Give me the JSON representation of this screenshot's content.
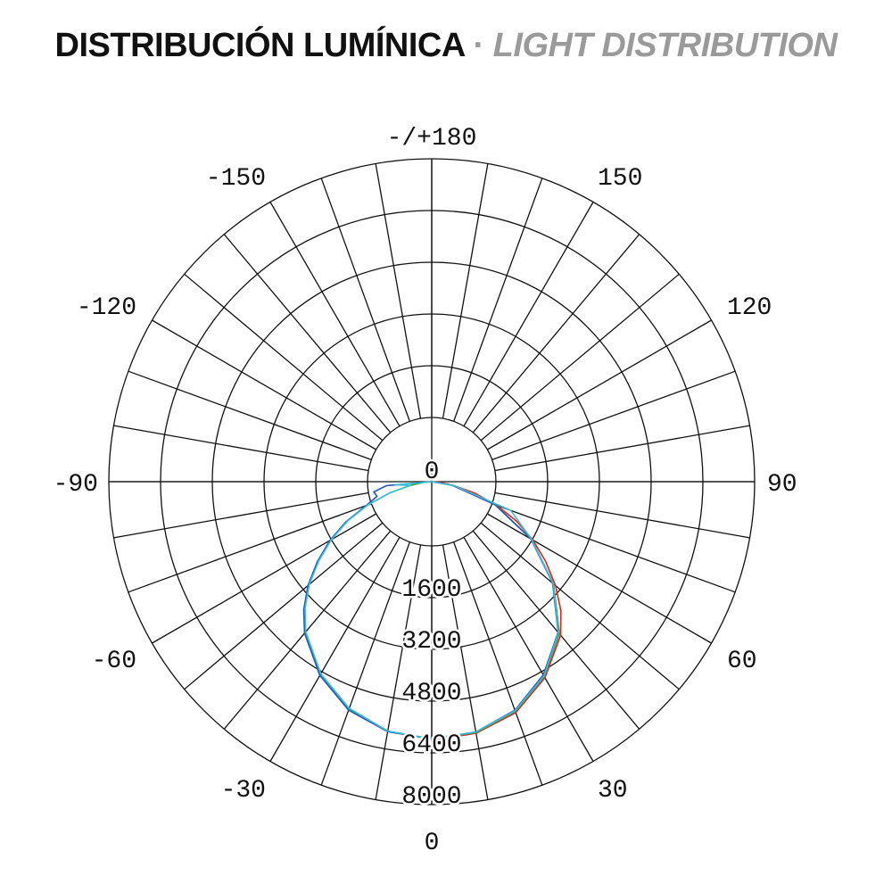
{
  "title": {
    "main": "DISTRIBUCIÓN LUMÍNICA",
    "separator": "·",
    "sub": "LIGHT DISTRIBUTION"
  },
  "chart_data": {
    "type": "polar",
    "angle_labels": [
      {
        "angle": 180,
        "text": "-/+180"
      },
      {
        "angle": -150,
        "text": "-150"
      },
      {
        "angle": 150,
        "text": "150"
      },
      {
        "angle": -120,
        "text": "-120"
      },
      {
        "angle": 120,
        "text": "120"
      },
      {
        "angle": -90,
        "text": "-90"
      },
      {
        "angle": 90,
        "text": "90"
      },
      {
        "angle": -60,
        "text": "-60"
      },
      {
        "angle": 60,
        "text": "60"
      },
      {
        "angle": -30,
        "text": "-30"
      },
      {
        "angle": 30,
        "text": "30"
      },
      {
        "angle": 0,
        "text": "0"
      }
    ],
    "radial_labels": [
      "0",
      "1600",
      "3200",
      "4800",
      "6400",
      "8000"
    ],
    "radial_ticks": [
      0,
      1600,
      3200,
      4800,
      6400,
      8000
    ],
    "rmax": 8000,
    "angle_step": 10,
    "grid": true,
    "series": [
      {
        "color": "#e8201f",
        "angles": [
          0,
          10,
          20,
          30,
          40,
          45,
          50,
          55,
          60,
          65,
          70,
          75,
          80,
          85,
          90
        ],
        "values": [
          8000,
          7900,
          7600,
          7000,
          6200,
          5650,
          5000,
          4300,
          3620,
          2900,
          2150,
          1380,
          690,
          280,
          0
        ]
      },
      {
        "color": "#35a33a",
        "angles": [
          0,
          -10,
          -20,
          -30,
          -40,
          -45,
          -50,
          -55,
          -60,
          -65,
          -70,
          -75,
          -80,
          -85,
          -90,
          10,
          20,
          30,
          40,
          50,
          60,
          70,
          80,
          90
        ],
        "values": [
          7960,
          7840,
          7480,
          6880,
          6080,
          5560,
          4960,
          4280,
          3600,
          2880,
          2120,
          1360,
          680,
          260,
          0,
          7880,
          7560,
          6960,
          6140,
          4920,
          3570,
          2100,
          660,
          0
        ]
      },
      {
        "color": "#2a56b8",
        "angles": [
          0,
          -10,
          -20,
          -30,
          -40,
          -45,
          -50,
          -55,
          -60,
          -65,
          -70,
          -75,
          -80,
          -85,
          -90,
          10,
          20,
          30,
          40,
          50,
          60,
          70,
          80,
          90
        ],
        "values": [
          7960,
          7850,
          7520,
          6920,
          6120,
          5600,
          5000,
          4320,
          3640,
          2920,
          2160,
          1750,
          1820,
          1400,
          0,
          7860,
          7520,
          6900,
          6080,
          4880,
          3540,
          2080,
          640,
          0
        ]
      },
      {
        "color": "#3bbfd8",
        "angles": [
          0,
          -10,
          -20,
          -30,
          -40,
          -45,
          -50,
          -55,
          -60,
          -65,
          -70,
          -75,
          -80,
          -85,
          -90,
          10,
          20,
          30,
          40,
          50,
          60,
          70,
          80,
          90
        ],
        "values": [
          7950,
          7830,
          7460,
          6860,
          6060,
          5540,
          4940,
          4260,
          3580,
          2860,
          2100,
          1340,
          670,
          1130,
          0,
          7860,
          7540,
          6940,
          6100,
          4900,
          3560,
          2600,
          700,
          0
        ]
      }
    ]
  }
}
